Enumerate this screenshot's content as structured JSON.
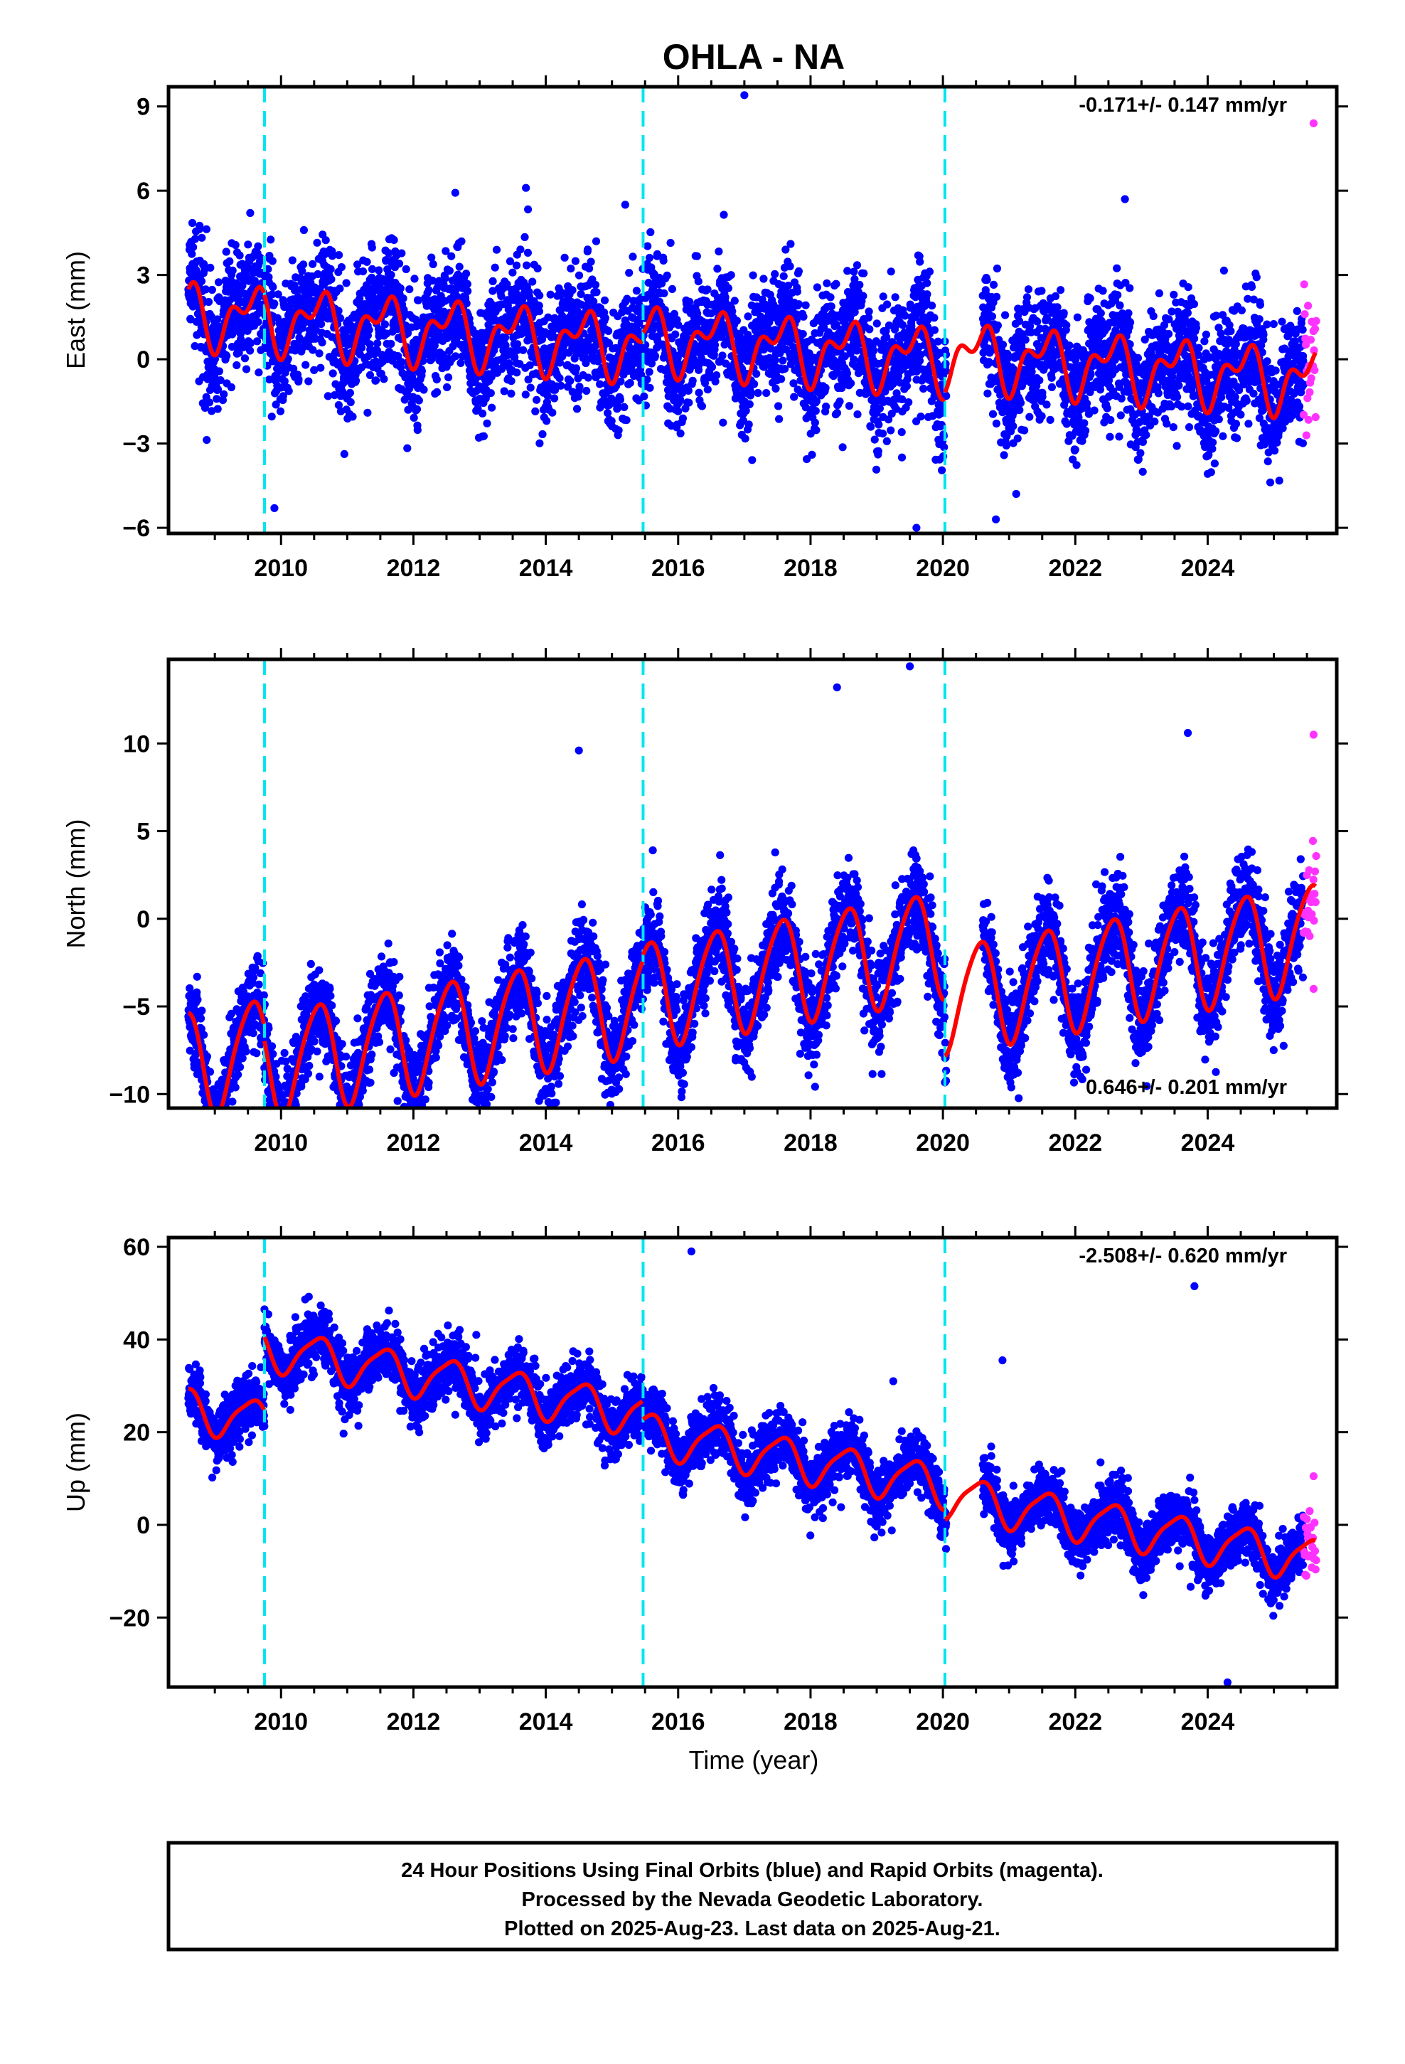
{
  "title": "OHLA - NA",
  "xlabel": "Time (year)",
  "colors": {
    "final_orbits": "#0000ff",
    "rapid_orbits": "#ff33ff",
    "model_fit": "#ff0000",
    "offset_lines": "#00e5ee"
  },
  "footer": {
    "line1": "24 Hour Positions Using Final Orbits (blue) and Rapid Orbits (magenta).",
    "line2": "Processed by the Nevada Geodetic Laboratory.",
    "line3": "Plotted on 2025-Aug-23. Last data on 2025-Aug-21."
  },
  "chart_data": [
    {
      "type": "scatter",
      "component": "east",
      "ylabel": "East (mm)",
      "rate_text": "-0.171+/- 0.147 mm/yr",
      "rate_position": "top-right",
      "xlim": [
        2008.3,
        2025.95
      ],
      "ylim": [
        -6.2,
        9.7
      ],
      "x_ticks": [
        2010,
        2012,
        2014,
        2016,
        2018,
        2020,
        2022,
        2024
      ],
      "y_ticks": [
        -6,
        -3,
        0,
        3,
        6,
        9
      ],
      "offset_epochs": [
        2009.75,
        2015.47,
        2020.03
      ],
      "model": {
        "trend_mm_per_yr": -0.171,
        "intercept_mm": 0.2,
        "annual_amp": 0.9,
        "semiannual_amp": 0.6,
        "offsets": [
          0,
          0.3,
          0.2
        ]
      },
      "scatter_sigma_mm": 1.1,
      "series_ranges": {
        "final": [
          2008.6,
          2025.45
        ],
        "rapid": [
          2025.45,
          2025.64
        ]
      },
      "gap": [
        2020.05,
        2020.6
      ],
      "outliers": [
        [
          2017.0,
          9.4
        ],
        [
          2013.7,
          6.1
        ],
        [
          2022.75,
          5.7
        ],
        [
          2015.2,
          5.5
        ],
        [
          2019.6,
          -6.0
        ],
        [
          2020.8,
          -5.7
        ],
        [
          2009.9,
          -5.3
        ],
        [
          2025.6,
          8.4
        ]
      ]
    },
    {
      "type": "scatter",
      "component": "north",
      "ylabel": "North (mm)",
      "rate_text": "0.646+/- 0.201 mm/yr",
      "rate_position": "bottom-right",
      "xlim": [
        2008.3,
        2025.95
      ],
      "ylim": [
        -10.8,
        14.8
      ],
      "x_ticks": [
        2010,
        2012,
        2014,
        2016,
        2018,
        2020,
        2022,
        2024
      ],
      "y_ticks": [
        -10,
        -5,
        0,
        5,
        10
      ],
      "offset_epochs": [
        2009.75,
        2015.47,
        2020.03
      ],
      "model": {
        "trend_mm_per_yr": 0.646,
        "intercept_mm": -2.8,
        "annual_amp": 3.0,
        "semiannual_amp": 0.4,
        "offsets": [
          -0.8,
          0.3,
          -3.2
        ]
      },
      "scatter_sigma_mm": 1.3,
      "series_ranges": {
        "final": [
          2008.6,
          2025.45
        ],
        "rapid": [
          2025.45,
          2025.64
        ]
      },
      "gap": [
        2020.05,
        2020.6
      ],
      "outliers": [
        [
          2014.5,
          9.6
        ],
        [
          2019.5,
          14.4
        ],
        [
          2018.4,
          13.2
        ],
        [
          2023.7,
          10.6
        ],
        [
          2011.0,
          -10.2
        ],
        [
          2013.1,
          -10.0
        ],
        [
          2025.6,
          10.5
        ],
        [
          2025.6,
          -4.0
        ]
      ]
    },
    {
      "type": "scatter",
      "component": "up",
      "ylabel": "Up (mm)",
      "rate_text": "-2.508+/- 0.620 mm/yr",
      "rate_position": "top-right",
      "xlim": [
        2008.3,
        2025.95
      ],
      "ylim": [
        -35,
        62
      ],
      "x_ticks": [
        2010,
        2012,
        2014,
        2016,
        2018,
        2020,
        2022,
        2024
      ],
      "y_ticks": [
        -20,
        0,
        20,
        40,
        60
      ],
      "offset_epochs": [
        2009.75,
        2015.47,
        2020.03
      ],
      "model": {
        "trend_mm_per_yr": -2.508,
        "intercept_mm": 4.0,
        "annual_amp": 4.5,
        "semiannual_amp": 1.0,
        "offsets": [
          16.0,
          -4.0,
          -2.0
        ]
      },
      "scatter_sigma_mm": 3.2,
      "series_ranges": {
        "final": [
          2008.6,
          2025.45
        ],
        "rapid": [
          2025.45,
          2025.64
        ]
      },
      "gap": [
        2020.05,
        2020.6
      ],
      "outliers": [
        [
          2016.2,
          59.0
        ],
        [
          2023.8,
          51.5
        ],
        [
          2009.75,
          46.5
        ],
        [
          2012.95,
          41.0
        ],
        [
          2020.9,
          35.5
        ],
        [
          2019.25,
          31.0
        ],
        [
          2024.3,
          -34.0
        ],
        [
          2025.6,
          10.5
        ]
      ]
    }
  ]
}
